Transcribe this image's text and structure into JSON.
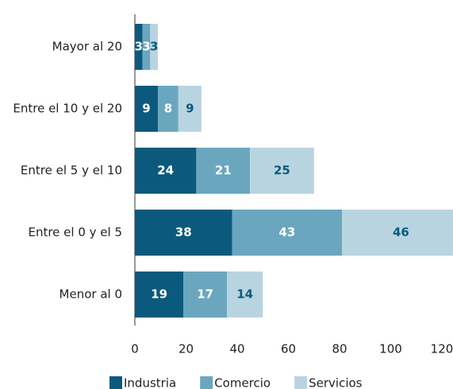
{
  "chart_data": {
    "type": "stacked_barh",
    "categories": [
      "Mayor al 20",
      "Entre el 10 y el 20",
      "Entre el 5 y el 10",
      "Entre el 0 y el 5",
      "Menor al 0"
    ],
    "series": [
      {
        "name": "Industria",
        "color": "#0b5a7d",
        "label_color": "#ffffff",
        "values": [
          3,
          9,
          24,
          38,
          19
        ]
      },
      {
        "name": "Comercio",
        "color": "#6aa7bf",
        "label_color": "#ffffff",
        "values": [
          3,
          8,
          21,
          43,
          17
        ]
      },
      {
        "name": "Servicios",
        "color": "#b9d4e1",
        "label_color": "#0b5a7d",
        "values": [
          3,
          9,
          25,
          46,
          14
        ]
      }
    ],
    "xlim": [
      0,
      120
    ],
    "xticks": [
      0,
      20,
      40,
      60,
      80,
      100,
      120
    ],
    "legend": "bottom"
  }
}
